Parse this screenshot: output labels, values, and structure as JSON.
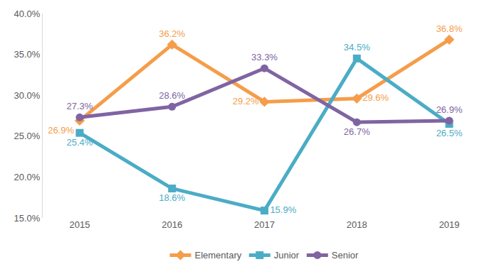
{
  "chart_data": {
    "type": "line",
    "categories": [
      "2015",
      "2016",
      "2017",
      "2018",
      "2019"
    ],
    "series": [
      {
        "name": "Elementary",
        "color": "#f59d4a",
        "marker": "diamond",
        "values": [
          26.9,
          36.2,
          29.2,
          29.6,
          36.8
        ],
        "value_labels": [
          "26.9%",
          "36.2%",
          "29.2%",
          "29.6%",
          "36.8%"
        ]
      },
      {
        "name": "Junior",
        "color": "#4bacc6",
        "marker": "square",
        "values": [
          25.4,
          18.6,
          15.9,
          34.5,
          26.5
        ],
        "value_labels": [
          "25.4%",
          "18.6%",
          "15.9%",
          "34.5%",
          "26.5%"
        ]
      },
      {
        "name": "Senior",
        "color": "#8064a2",
        "marker": "circle",
        "values": [
          27.3,
          28.6,
          33.3,
          26.7,
          26.9
        ],
        "value_labels": [
          "27.3%",
          "28.6%",
          "33.3%",
          "26.7%",
          "26.9%"
        ]
      }
    ],
    "ylim": [
      15,
      40
    ],
    "yticks": [
      {
        "value": 15,
        "label": "15.0%"
      },
      {
        "value": 20,
        "label": "20.0%"
      },
      {
        "value": 25,
        "label": "25.0%"
      },
      {
        "value": 30,
        "label": "30.0%"
      },
      {
        "value": 35,
        "label": "35.0%"
      },
      {
        "value": 40,
        "label": "40.0%"
      }
    ],
    "grid": false,
    "legend": "bottom",
    "data_labels": true
  }
}
